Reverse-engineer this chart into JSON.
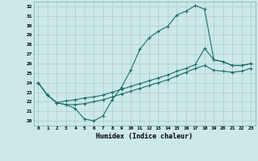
{
  "title": "",
  "xlabel": "Humidex (Indice chaleur)",
  "xlim": [
    -0.5,
    23.5
  ],
  "ylim": [
    19.5,
    32.5
  ],
  "xticks": [
    0,
    1,
    2,
    3,
    4,
    5,
    6,
    7,
    8,
    9,
    10,
    11,
    12,
    13,
    14,
    15,
    16,
    17,
    18,
    19,
    20,
    21,
    22,
    23
  ],
  "yticks": [
    20,
    21,
    22,
    23,
    24,
    25,
    26,
    27,
    28,
    29,
    30,
    31,
    32
  ],
  "bg_color": "#cce8e8",
  "line_color": "#1a6e6a",
  "grid_color": "#aacccc",
  "line1_x": [
    0,
    1,
    2,
    3,
    4,
    5,
    6,
    7,
    8,
    9,
    10,
    11,
    12,
    13,
    14,
    15,
    16,
    17,
    18,
    19,
    20,
    21,
    22,
    23
  ],
  "line1_y": [
    24.0,
    22.7,
    21.9,
    21.7,
    21.3,
    20.2,
    20.0,
    20.5,
    22.2,
    23.5,
    25.3,
    27.5,
    28.7,
    29.4,
    29.9,
    31.1,
    31.5,
    32.1,
    31.7,
    26.4,
    26.2,
    25.8,
    25.8,
    26.0
  ],
  "line2_x": [
    0,
    1,
    2,
    3,
    4,
    5,
    6,
    7,
    8,
    9,
    10,
    11,
    12,
    13,
    14,
    15,
    16,
    17,
    18,
    19,
    20,
    21,
    22,
    23
  ],
  "line2_y": [
    24.0,
    22.7,
    21.9,
    22.1,
    22.2,
    22.4,
    22.5,
    22.7,
    23.0,
    23.3,
    23.6,
    23.9,
    24.2,
    24.5,
    24.8,
    25.2,
    25.5,
    25.9,
    27.6,
    26.4,
    26.2,
    25.8,
    25.8,
    26.0
  ],
  "line3_x": [
    0,
    1,
    2,
    3,
    4,
    5,
    6,
    7,
    8,
    9,
    10,
    11,
    12,
    13,
    14,
    15,
    16,
    17,
    18,
    19,
    20,
    21,
    22,
    23
  ],
  "line3_y": [
    24.0,
    22.7,
    21.9,
    21.7,
    21.7,
    21.8,
    22.0,
    22.2,
    22.5,
    22.8,
    23.1,
    23.4,
    23.7,
    24.0,
    24.3,
    24.7,
    25.1,
    25.5,
    25.8,
    25.3,
    25.2,
    25.1,
    25.2,
    25.5
  ],
  "marker": "+"
}
